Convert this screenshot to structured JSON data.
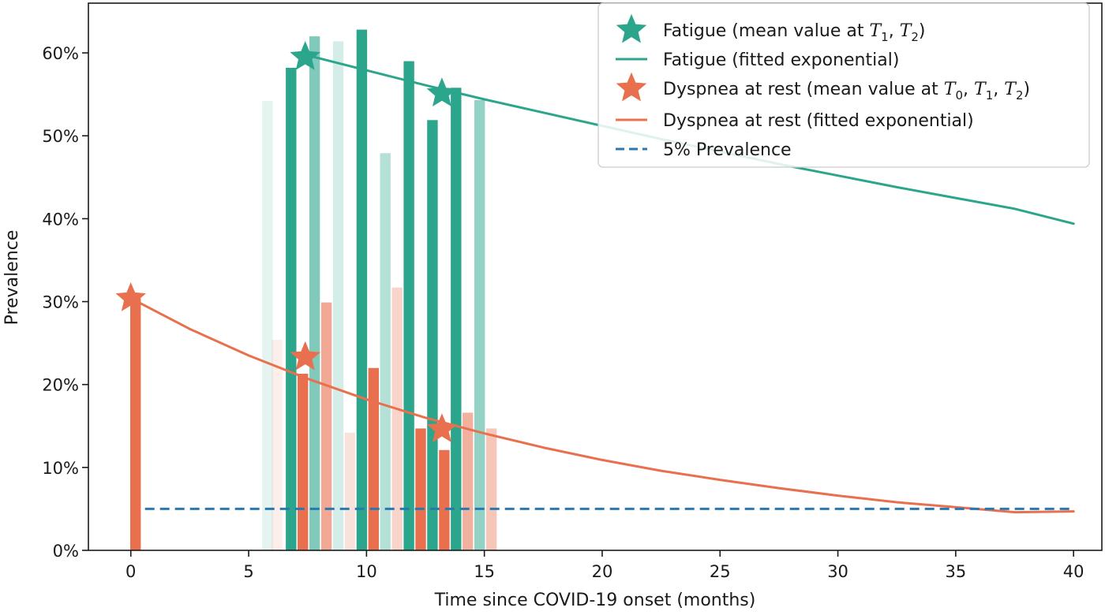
{
  "chart_data": {
    "type": "bar",
    "xlabel": "Time since COVID-19 onset (months)",
    "ylabel": "Prevalence",
    "xlim": [
      -1.8,
      41.2
    ],
    "ylim": [
      0,
      66
    ],
    "x_ticks": [
      0,
      5,
      10,
      15,
      20,
      25,
      30,
      35,
      40
    ],
    "x_tick_labels": [
      "0",
      "5",
      "10",
      "15",
      "20",
      "25",
      "30",
      "35",
      "40"
    ],
    "y_ticks": [
      0,
      10,
      20,
      30,
      40,
      50,
      60
    ],
    "y_tick_labels": [
      "0%",
      "10%",
      "20%",
      "30%",
      "40%",
      "50%",
      "60%"
    ],
    "grid": false,
    "legend_position": "top-right",
    "colors": {
      "fatigue": "#2ca58d",
      "dyspnea": "#e8704f",
      "threshold": "#2a78b0"
    },
    "fatigue_bars": [
      {
        "x": 5.8,
        "value": 54.2,
        "opacity": 0.12
      },
      {
        "x": 6.8,
        "value": 58.2,
        "opacity": 1.0
      },
      {
        "x": 7.8,
        "value": 62.0,
        "opacity": 0.6
      },
      {
        "x": 8.8,
        "value": 61.4,
        "opacity": 0.2
      },
      {
        "x": 9.8,
        "value": 62.8,
        "opacity": 1.0
      },
      {
        "x": 10.8,
        "value": 47.9,
        "opacity": 0.35
      },
      {
        "x": 11.8,
        "value": 59.0,
        "opacity": 1.0
      },
      {
        "x": 12.8,
        "value": 51.9,
        "opacity": 1.0
      },
      {
        "x": 13.8,
        "value": 55.8,
        "opacity": 1.0
      },
      {
        "x": 14.8,
        "value": 54.3,
        "opacity": 0.5
      }
    ],
    "dyspnea_bars": [
      {
        "x": 0.2,
        "value": 30.4,
        "opacity": 1.0
      },
      {
        "x": 6.2,
        "value": 25.4,
        "opacity": 0.12
      },
      {
        "x": 7.3,
        "value": 21.3,
        "opacity": 1.0
      },
      {
        "x": 8.3,
        "value": 29.9,
        "opacity": 0.6
      },
      {
        "x": 9.3,
        "value": 14.2,
        "opacity": 0.2
      },
      {
        "x": 10.3,
        "value": 22.0,
        "opacity": 1.0
      },
      {
        "x": 11.3,
        "value": 31.7,
        "opacity": 0.3
      },
      {
        "x": 12.3,
        "value": 14.7,
        "opacity": 1.0
      },
      {
        "x": 13.3,
        "value": 12.1,
        "opacity": 1.0
      },
      {
        "x": 14.3,
        "value": 16.6,
        "opacity": 0.55
      },
      {
        "x": 15.3,
        "value": 14.7,
        "opacity": 0.4
      }
    ],
    "bar_width": 0.45,
    "series": [
      {
        "name": "Fatigue (fitted exponential)",
        "kind": "line",
        "color": "#2ca58d",
        "x": [
          7.5,
          10,
          12.5,
          15,
          17.5,
          20,
          22.5,
          25,
          27.5,
          30,
          32.5,
          35,
          37.5,
          40
        ],
        "y": [
          59.7,
          57.9,
          56.1,
          54.4,
          52.8,
          51.2,
          49.6,
          48.1,
          46.6,
          45.2,
          43.8,
          42.5,
          41.2,
          39.4
        ]
      },
      {
        "name": "Dyspnea at rest (fitted exponential)",
        "kind": "line",
        "color": "#e8704f",
        "x": [
          0,
          2.5,
          5,
          7.5,
          10,
          12.5,
          15,
          17.5,
          20,
          22.5,
          25,
          27.5,
          30,
          32.5,
          35,
          37.5,
          40
        ],
        "y": [
          30.4,
          26.7,
          23.5,
          20.7,
          18.2,
          16.0,
          14.1,
          12.4,
          10.9,
          9.6,
          8.5,
          7.5,
          6.6,
          5.8,
          5.2,
          4.6,
          4.7
        ]
      },
      {
        "name": "5% Prevalence",
        "kind": "dashed",
        "color": "#2a78b0",
        "x": [
          0.6,
          40
        ],
        "y": [
          5,
          5
        ]
      }
    ],
    "stars": [
      {
        "series": "Fatigue (mean value at T1, T2)",
        "color": "#2ca58d",
        "points": [
          {
            "x": 7.4,
            "y": 59.5
          },
          {
            "x": 13.2,
            "y": 55.1
          }
        ]
      },
      {
        "series": "Dyspnea at rest (mean value at T0, T1, T2)",
        "color": "#e8704f",
        "points": [
          {
            "x": 0.0,
            "y": 30.4
          },
          {
            "x": 7.4,
            "y": 23.3
          },
          {
            "x": 13.2,
            "y": 14.6
          }
        ]
      }
    ],
    "legend": [
      {
        "kind": "star",
        "color": "#2ca58d",
        "label": "Fatigue (mean value at ",
        "math": "T1, T2",
        "suffix": ")",
        "subs": [
          [
            "T",
            "1"
          ],
          [
            "T",
            "2"
          ]
        ]
      },
      {
        "kind": "line",
        "color": "#2ca58d",
        "label": "Fatigue (fitted exponential)"
      },
      {
        "kind": "star",
        "color": "#e8704f",
        "label": "Dyspnea at rest (mean value at ",
        "math": "T0, T1, T2",
        "suffix": ")",
        "subs": [
          [
            "T",
            "0"
          ],
          [
            "T",
            "1"
          ],
          [
            "T",
            "2"
          ]
        ]
      },
      {
        "kind": "line",
        "color": "#e8704f",
        "label": "Dyspnea at rest (fitted exponential)"
      },
      {
        "kind": "dashed",
        "color": "#2a78b0",
        "label": "5% Prevalence"
      }
    ]
  }
}
